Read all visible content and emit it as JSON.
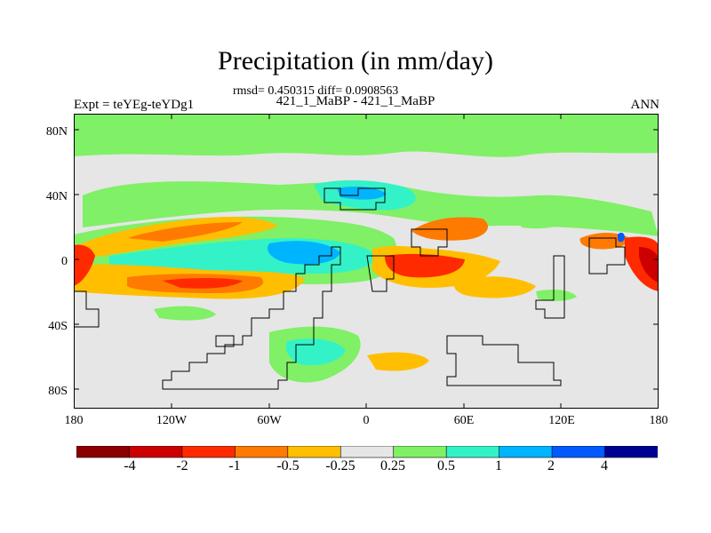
{
  "title": "Precipitation (in mm/day)",
  "stats_line": "rmsd= 0.450315  diff= 0.0908563",
  "expt_label": "Expt = teYEg-teYDg1",
  "comparison_label": "421_1_MaBP - 421_1_MaBP",
  "season_label": "ANN",
  "lat_ticks": [
    "80N",
    "40N",
    "0",
    "40S",
    "80S"
  ],
  "lon_ticks": [
    "180",
    "120W",
    "60W",
    "0",
    "60E",
    "120E",
    "180"
  ],
  "colorbar": {
    "colors": [
      "#8b0000",
      "#cc0000",
      "#ff2a00",
      "#ff7a00",
      "#ffbf00",
      "#e6e6e6",
      "#80f066",
      "#33f2c8",
      "#00b4ff",
      "#005aff",
      "#000090"
    ],
    "labels": [
      "-4",
      "-2",
      "-1",
      "-0.5",
      "-0.25",
      "0.25",
      "0.5",
      "1",
      "2",
      "4"
    ]
  }
}
